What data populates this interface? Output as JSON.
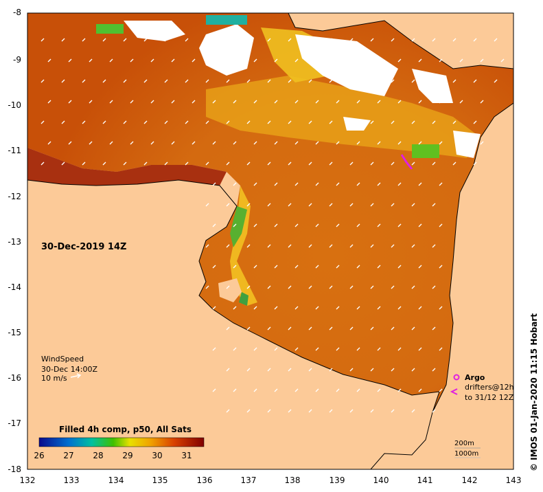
{
  "map": {
    "y_ticks": [
      "-8",
      "-9",
      "-10",
      "-11",
      "-12",
      "-13",
      "-14",
      "-15",
      "-16",
      "-17",
      "-18"
    ],
    "x_ticks": [
      "132",
      "133",
      "134",
      "135",
      "136",
      "137",
      "138",
      "139",
      "140",
      "141",
      "142",
      "143"
    ],
    "lon_range": [
      132,
      143
    ],
    "lat_range": [
      -18,
      -8
    ],
    "colors": {
      "land": "#fcca98",
      "no_data": "#ffffff",
      "sst_low": "#1a1aa0",
      "sst_high": "#8c0a00"
    }
  },
  "overlay": {
    "date_label": "30-Dec-2019 14Z",
    "wind_title": "WindSpeed",
    "wind_time": "30-Dec 14:00Z",
    "wind_scale": "10 m/s"
  },
  "colorbar": {
    "title": "Filled 4h comp, p50, All Sats",
    "ticks": [
      "26",
      "27",
      "28",
      "29",
      "30",
      "31"
    ],
    "range": [
      26,
      31.6
    ]
  },
  "legend": {
    "argo": "Argo",
    "drifters_line1": "drifters@12h",
    "drifters_line2": "to 31/12 12Z",
    "argo_color": "#e020e0",
    "isobath_200": "200m",
    "isobath_1000": "1000m"
  },
  "credit": "© IMOS 01-Jan-2020 11:15 Hobart"
}
